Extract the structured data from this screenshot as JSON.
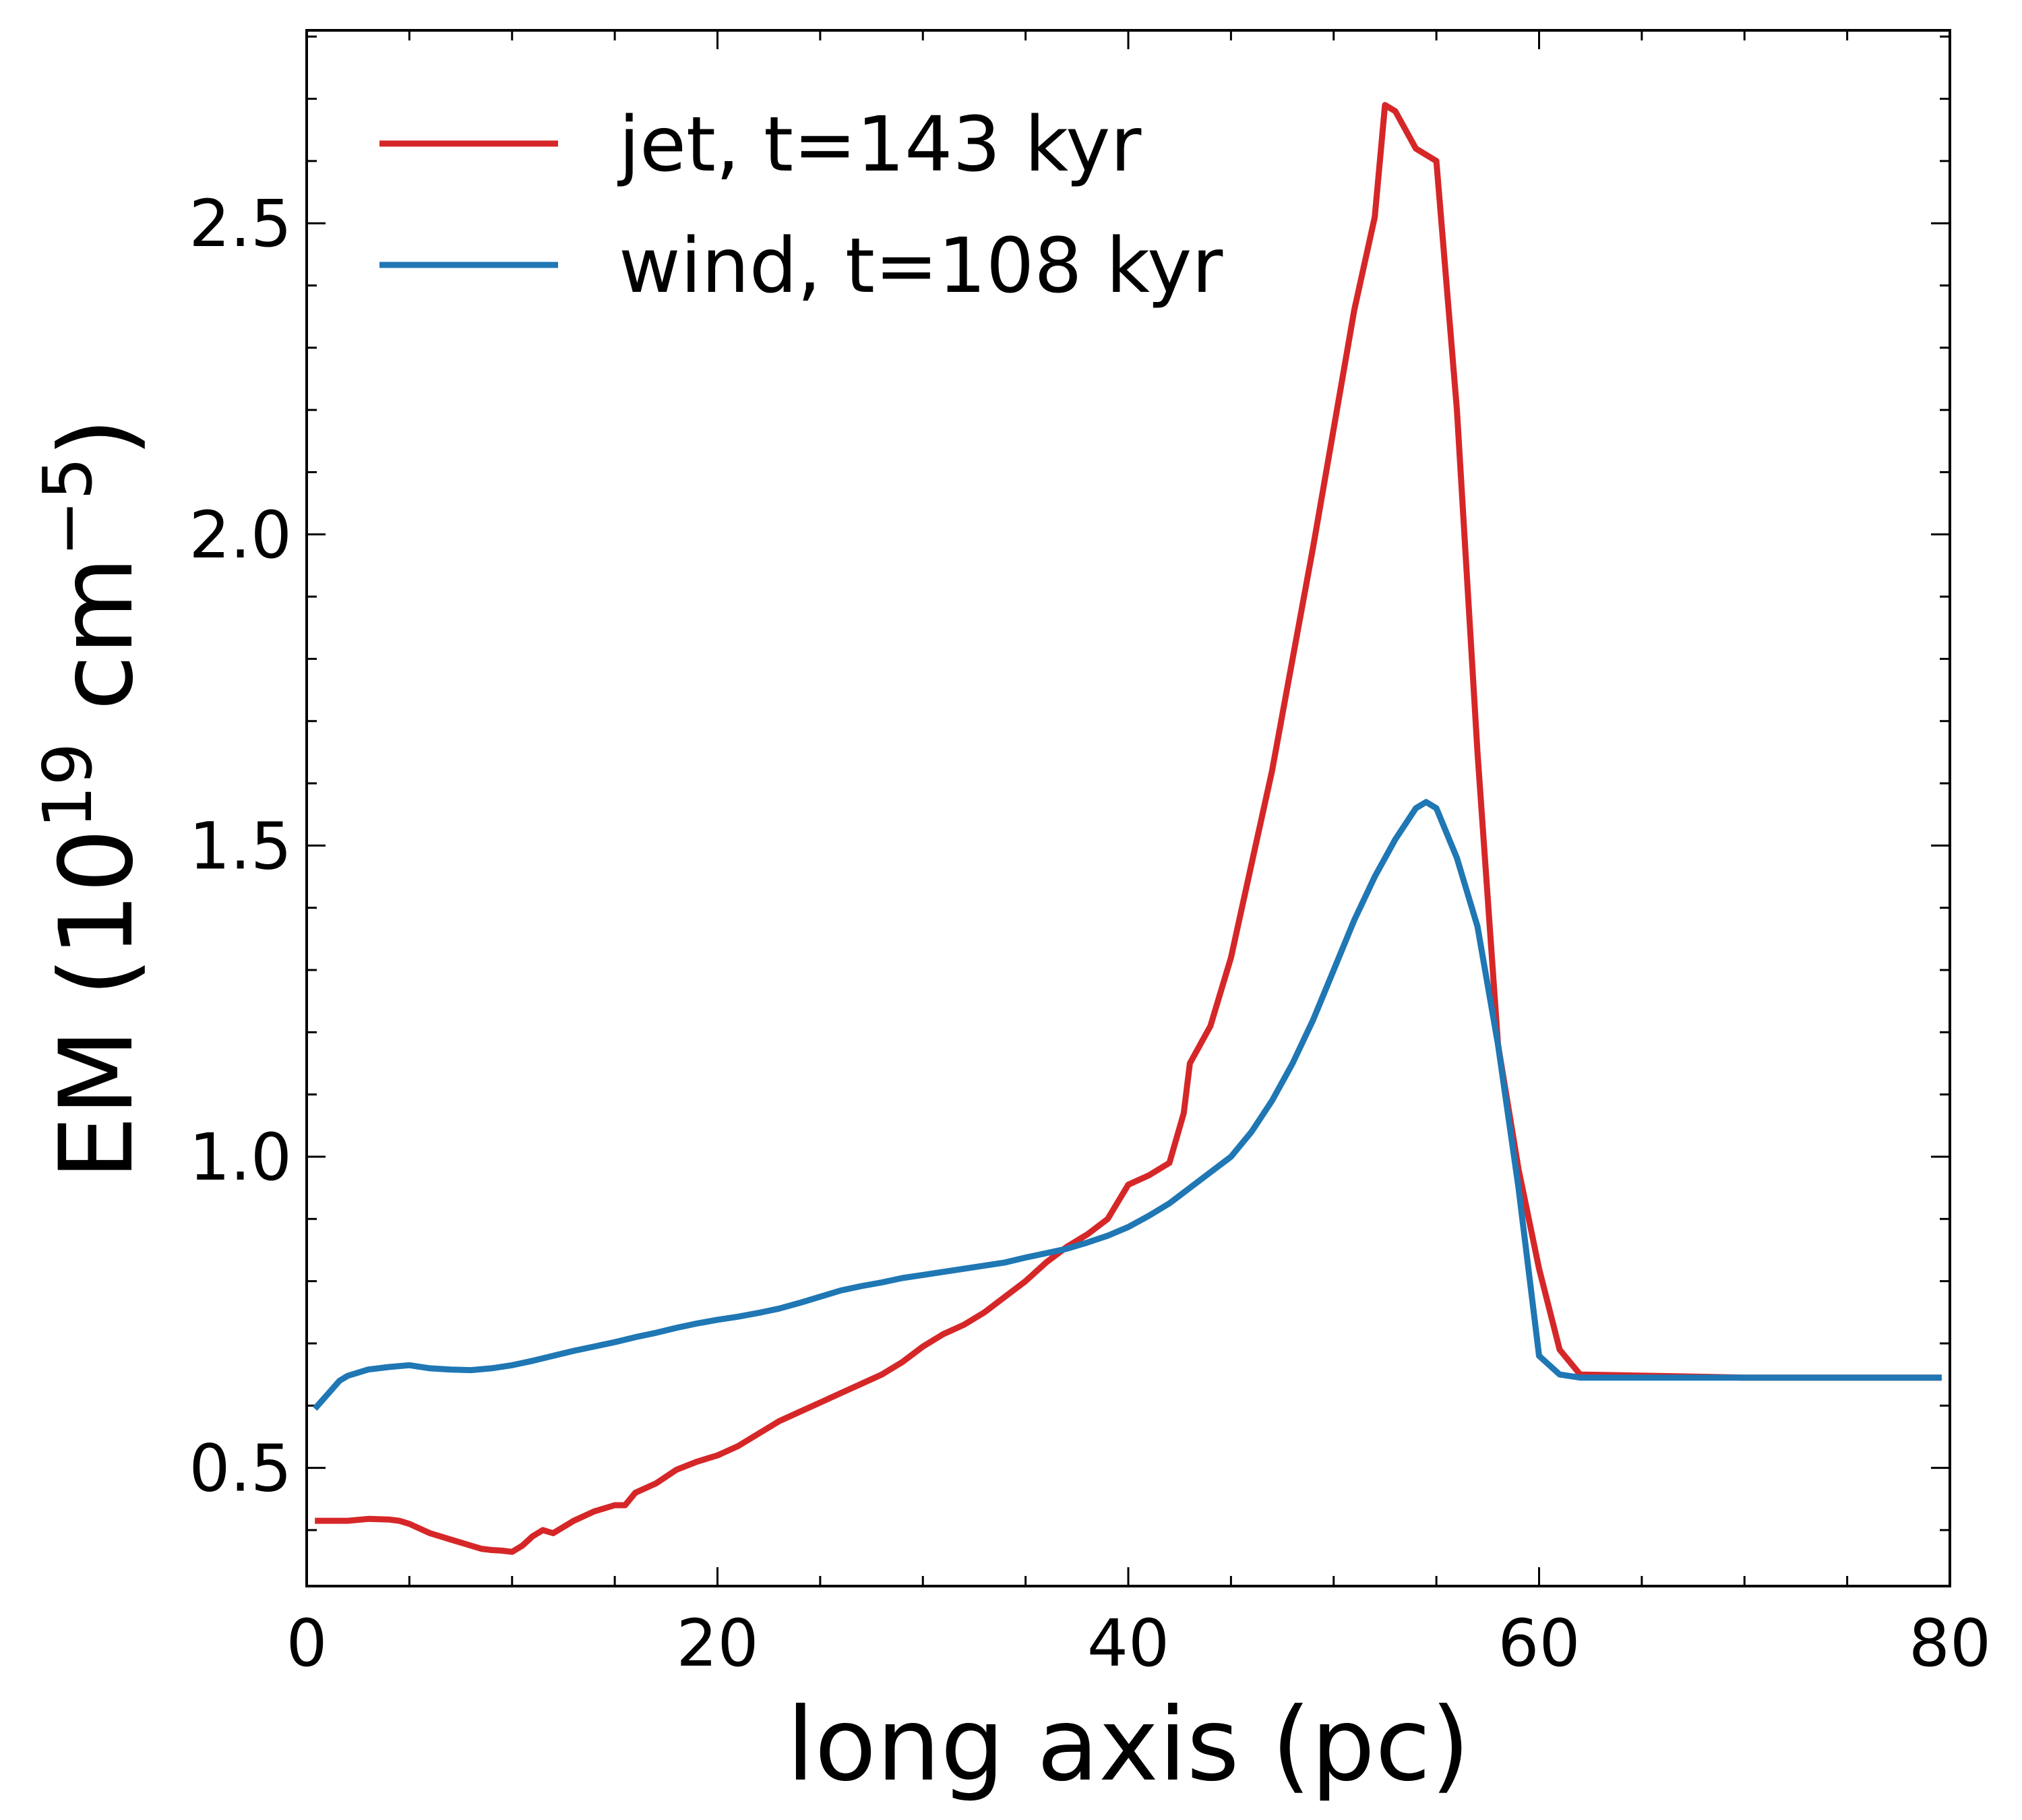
{
  "chart_data": {
    "type": "line",
    "xlabel": "long axis (pc)",
    "ylabel_parts": {
      "base": "EM (10",
      "exp1": "19",
      "mid": " cm",
      "exp2": "−5",
      "end": ")"
    },
    "xlim": [
      0,
      80
    ],
    "ylim": [
      0.31,
      2.81
    ],
    "x_ticks": [
      0,
      20,
      40,
      60,
      80
    ],
    "x_tick_labels": [
      "0",
      "20",
      "40",
      "60",
      "80"
    ],
    "y_ticks": [
      0.5,
      1.0,
      1.5,
      2.0,
      2.5
    ],
    "y_tick_labels": [
      "0.5",
      "1.0",
      "1.5",
      "2.0",
      "2.5"
    ],
    "x_minor_step": 5,
    "y_minor_step": 0.1,
    "legend_position": "top-left",
    "series": [
      {
        "name": "jet, t=143 kyr",
        "color": "#d62728",
        "x": [
          0.4,
          1.6,
          2.0,
          3.0,
          4.0,
          4.5,
          5.0,
          6.0,
          7.0,
          8.0,
          8.5,
          9.0,
          9.5,
          10.0,
          10.5,
          11.0,
          11.5,
          12.0,
          13.0,
          14.0,
          15.0,
          15.5,
          16.0,
          17.0,
          18.0,
          19.0,
          20.0,
          21.0,
          22.0,
          23.0,
          24.0,
          25.0,
          26.0,
          27.0,
          28.0,
          29.0,
          30.0,
          31.0,
          32.0,
          33.0,
          34.0,
          35.0,
          36.0,
          37.0,
          38.0,
          39.0,
          40.0,
          41.0,
          42.0,
          42.7,
          43.0,
          44.0,
          45.0,
          46.0,
          47.0,
          48.0,
          49.0,
          50.0,
          51.0,
          52.0,
          52.5,
          53.0,
          54.0,
          55.0,
          56.0,
          57.0,
          58.0,
          59.0,
          60.0,
          61.0,
          62.0,
          70.0,
          79.6
        ],
        "y": [
          0.415,
          0.415,
          0.415,
          0.418,
          0.417,
          0.415,
          0.41,
          0.395,
          0.385,
          0.375,
          0.37,
          0.368,
          0.367,
          0.365,
          0.375,
          0.39,
          0.4,
          0.395,
          0.415,
          0.43,
          0.44,
          0.44,
          0.46,
          0.475,
          0.497,
          0.51,
          0.52,
          0.535,
          0.555,
          0.575,
          0.59,
          0.605,
          0.62,
          0.635,
          0.65,
          0.67,
          0.695,
          0.715,
          0.73,
          0.75,
          0.775,
          0.8,
          0.83,
          0.855,
          0.875,
          0.9,
          0.955,
          0.97,
          0.99,
          1.07,
          1.15,
          1.21,
          1.32,
          1.47,
          1.62,
          1.8,
          1.98,
          2.17,
          2.36,
          2.51,
          2.69,
          2.68,
          2.62,
          2.6,
          2.2,
          1.65,
          1.18,
          0.98,
          0.82,
          0.69,
          0.65,
          0.645,
          0.645
        ]
      },
      {
        "name": "wind, t=108 kyr",
        "color": "#1f77b4",
        "x": [
          0.4,
          1.6,
          2.0,
          3.0,
          4.0,
          5.0,
          6.0,
          7.0,
          8.0,
          9.0,
          10.0,
          11.0,
          12.0,
          13.0,
          14.0,
          15.0,
          16.0,
          17.0,
          18.0,
          19.0,
          20.0,
          21.0,
          22.0,
          23.0,
          24.0,
          25.0,
          26.0,
          27.0,
          28.0,
          29.0,
          30.0,
          31.0,
          32.0,
          33.0,
          34.0,
          35.0,
          36.0,
          37.0,
          38.0,
          39.0,
          40.0,
          41.0,
          42.0,
          43.0,
          44.0,
          45.0,
          46.0,
          47.0,
          48.0,
          49.0,
          50.0,
          51.0,
          52.0,
          53.0,
          54.0,
          54.5,
          55.0,
          56.0,
          57.0,
          58.0,
          59.0,
          60.0,
          61.0,
          62.0,
          70.0,
          79.6
        ],
        "y": [
          0.595,
          0.64,
          0.648,
          0.658,
          0.662,
          0.665,
          0.66,
          0.658,
          0.657,
          0.66,
          0.665,
          0.672,
          0.68,
          0.688,
          0.695,
          0.702,
          0.71,
          0.717,
          0.725,
          0.732,
          0.738,
          0.743,
          0.749,
          0.756,
          0.765,
          0.775,
          0.785,
          0.792,
          0.798,
          0.805,
          0.81,
          0.815,
          0.82,
          0.825,
          0.83,
          0.838,
          0.845,
          0.852,
          0.862,
          0.873,
          0.887,
          0.905,
          0.925,
          0.95,
          0.975,
          1.0,
          1.04,
          1.09,
          1.15,
          1.22,
          1.3,
          1.38,
          1.45,
          1.51,
          1.56,
          1.57,
          1.56,
          1.48,
          1.37,
          1.18,
          0.95,
          0.68,
          0.65,
          0.645,
          0.645,
          0.645
        ]
      }
    ]
  }
}
